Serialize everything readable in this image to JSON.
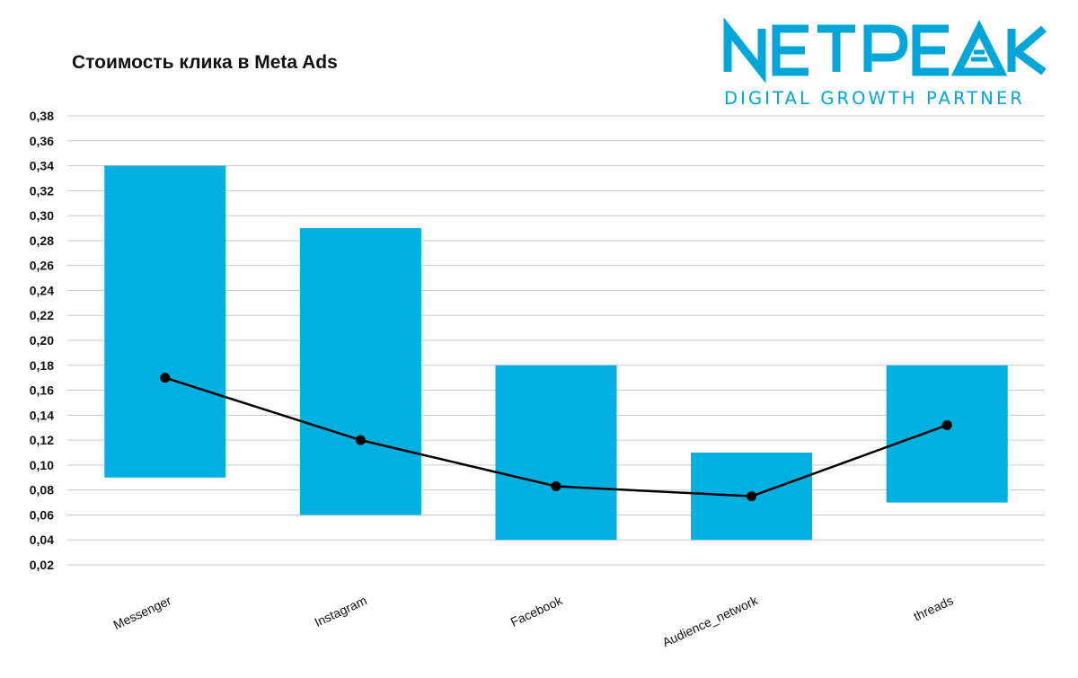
{
  "header": {
    "title": "Стоимость клика в Meta Ads"
  },
  "logo": {
    "brand": "NETPEAK",
    "tagline": "DIGITAL GROWTH PARTNER",
    "color": "#00A6D9"
  },
  "colors": {
    "bar": "#00B0E0",
    "line": "#000000",
    "grid": "#C8C8C8",
    "text": "#111111"
  },
  "chart_data": {
    "type": "bar",
    "subtype": "floating-range-with-line",
    "title": "Стоимость клика в Meta Ads",
    "xlabel": "",
    "ylabel": "",
    "categories": [
      "Messenger",
      "Instagram",
      "Facebook",
      "Audience_network",
      "threads"
    ],
    "ranges": [
      {
        "low": 0.09,
        "high": 0.34
      },
      {
        "low": 0.06,
        "high": 0.29
      },
      {
        "low": 0.04,
        "high": 0.18
      },
      {
        "low": 0.04,
        "high": 0.11
      },
      {
        "low": 0.07,
        "high": 0.18
      }
    ],
    "line_values": [
      0.17,
      0.12,
      0.083,
      0.075,
      0.132
    ],
    "ylim": [
      0.02,
      0.38
    ],
    "yticks": [
      "0,38",
      "0,36",
      "0,34",
      "0,32",
      "0,30",
      "0,28",
      "0,26",
      "0,24",
      "0,22",
      "0,20",
      "0,18",
      "0,16",
      "0,14",
      "0,12",
      "0,10",
      "0,08",
      "0,06",
      "0,04",
      "0,02"
    ],
    "grid": true,
    "legend": "none"
  }
}
